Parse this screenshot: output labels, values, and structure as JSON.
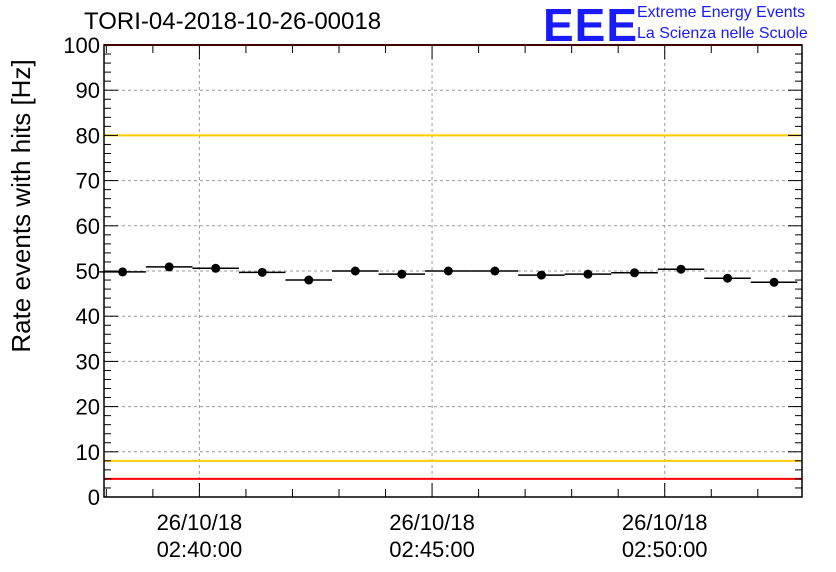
{
  "title": "TORI-04-2018-10-26-00018",
  "logo": {
    "mark": "EEE",
    "line1": "Extreme Energy Events",
    "line2": "La Scienza nelle Scuole",
    "color": "#1a1aff"
  },
  "chart_data": {
    "type": "scatter",
    "title": "TORI-04-2018-10-26-00018",
    "xlabel": "",
    "ylabel": "Rate events with hits [Hz]",
    "ylim": [
      0,
      100
    ],
    "yticks": [
      0,
      10,
      20,
      30,
      40,
      50,
      60,
      70,
      80,
      90,
      100
    ],
    "grid": true,
    "xlim_minutes": [
      -2.05,
      12.95
    ],
    "xticks": [
      {
        "minute": 0,
        "date": "26/10/18",
        "time": "02:40:00"
      },
      {
        "minute": 5,
        "date": "26/10/18",
        "time": "02:45:00"
      },
      {
        "minute": 10,
        "date": "26/10/18",
        "time": "02:50:00"
      }
    ],
    "bin_width_minutes": 1,
    "series": [
      {
        "name": "rate",
        "x_minutes": [
          -1.65,
          -0.65,
          0.35,
          1.35,
          2.35,
          3.35,
          4.35,
          5.35,
          6.35,
          7.35,
          8.35,
          9.35,
          10.35,
          11.35,
          12.35
        ],
        "values": [
          49.8,
          50.9,
          50.6,
          49.7,
          48.0,
          50.0,
          49.3,
          50.0,
          50.0,
          49.1,
          49.3,
          49.6,
          50.4,
          48.4,
          47.5
        ]
      }
    ],
    "reference_lines": [
      {
        "name": "upper-red",
        "value": 100,
        "color": "#ff0000"
      },
      {
        "name": "upper-yellow",
        "value": 80,
        "color": "#ffcc00"
      },
      {
        "name": "lower-yellow",
        "value": 8,
        "color": "#ffcc00"
      },
      {
        "name": "lower-red",
        "value": 4,
        "color": "#ff0000"
      }
    ]
  }
}
